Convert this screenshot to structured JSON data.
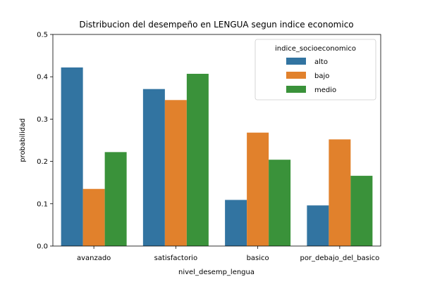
{
  "chart_data": {
    "type": "bar",
    "title": "Distribucion del desempeño en LENGUA segun indice economico",
    "xlabel": "nivel_desemp_lengua",
    "ylabel": "probabilidad",
    "ylim": [
      0,
      0.5
    ],
    "yticks": [
      "0.0",
      "0.1",
      "0.2",
      "0.3",
      "0.4",
      "0.5"
    ],
    "categories": [
      "avanzado",
      "satisfactorio",
      "basico",
      "por_debajo_del_basico"
    ],
    "series": [
      {
        "name": "alto",
        "color": "#3274a1",
        "values": [
          0.422,
          0.371,
          0.109,
          0.096
        ]
      },
      {
        "name": "bajo",
        "color": "#e1812c",
        "values": [
          0.135,
          0.345,
          0.268,
          0.252
        ]
      },
      {
        "name": "medio",
        "color": "#3a923a",
        "values": [
          0.222,
          0.407,
          0.204,
          0.166
        ]
      }
    ],
    "legend": {
      "title": "indice_socioeconomico",
      "position": "top-right"
    },
    "grid": false
  }
}
